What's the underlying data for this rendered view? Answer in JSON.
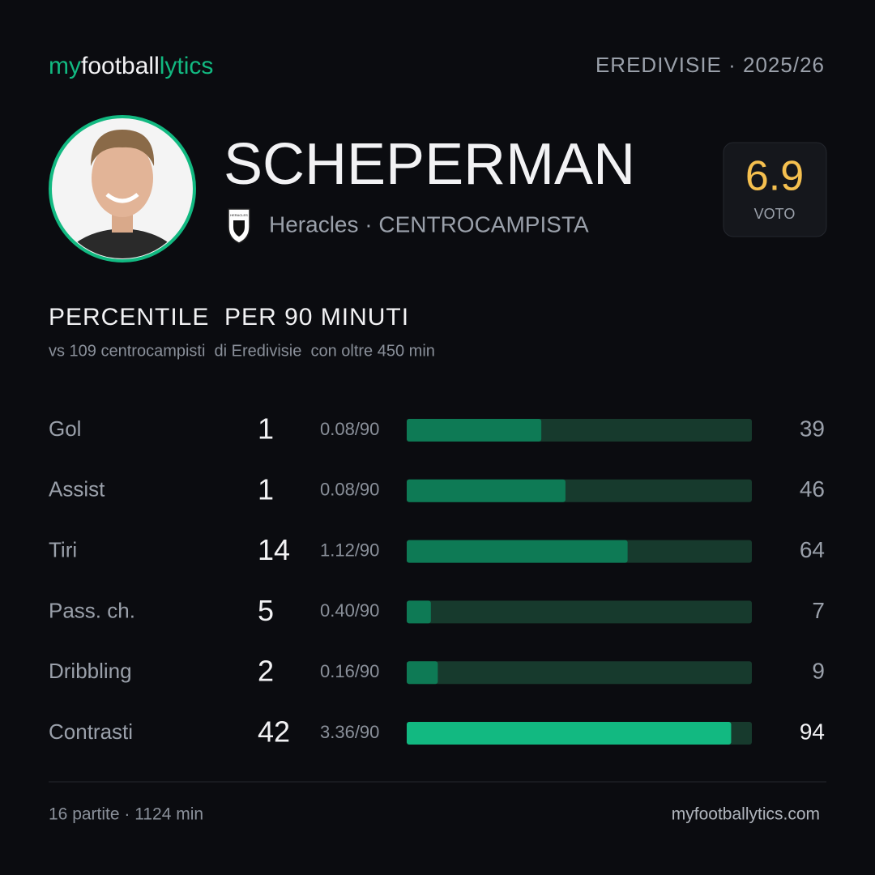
{
  "header": {
    "brand": [
      "my",
      "football",
      "lytics"
    ],
    "league": "EREDIVISIE · 2025/26"
  },
  "player": {
    "name": "SCHEPERMAN",
    "team": "Heracles · CENTROCAMPISTA",
    "badge": "HERACLES",
    "rating": "6.9",
    "rating_label": "VOTO"
  },
  "chart_data": {
    "type": "bar",
    "title": "PERCENTILE  PER 90 MINUTI",
    "subtitle": "vs 109 centrocampisti  di Eredivisie  con oltre 450 min",
    "categories": [
      "Gol",
      "Assist",
      "Tiri",
      "Pass. ch.",
      "Dribbling",
      "Contrasti"
    ],
    "totals": [
      1,
      1,
      14,
      5,
      2,
      42
    ],
    "rates": [
      "0.08/90",
      "0.08/90",
      "1.12/90",
      "0.40/90",
      "0.16/90",
      "3.36/90"
    ],
    "values": [
      39,
      46,
      64,
      7,
      9,
      94
    ],
    "highlighted": [
      false,
      false,
      false,
      false,
      false,
      true
    ],
    "color": "#0e7a55",
    "highlight_color": "#12b981",
    "track_color": "#173a2d",
    "xlim": [
      0,
      100
    ]
  },
  "footer": {
    "stats": "16 partite · 1124 min",
    "site": "myfootballytics.com"
  }
}
